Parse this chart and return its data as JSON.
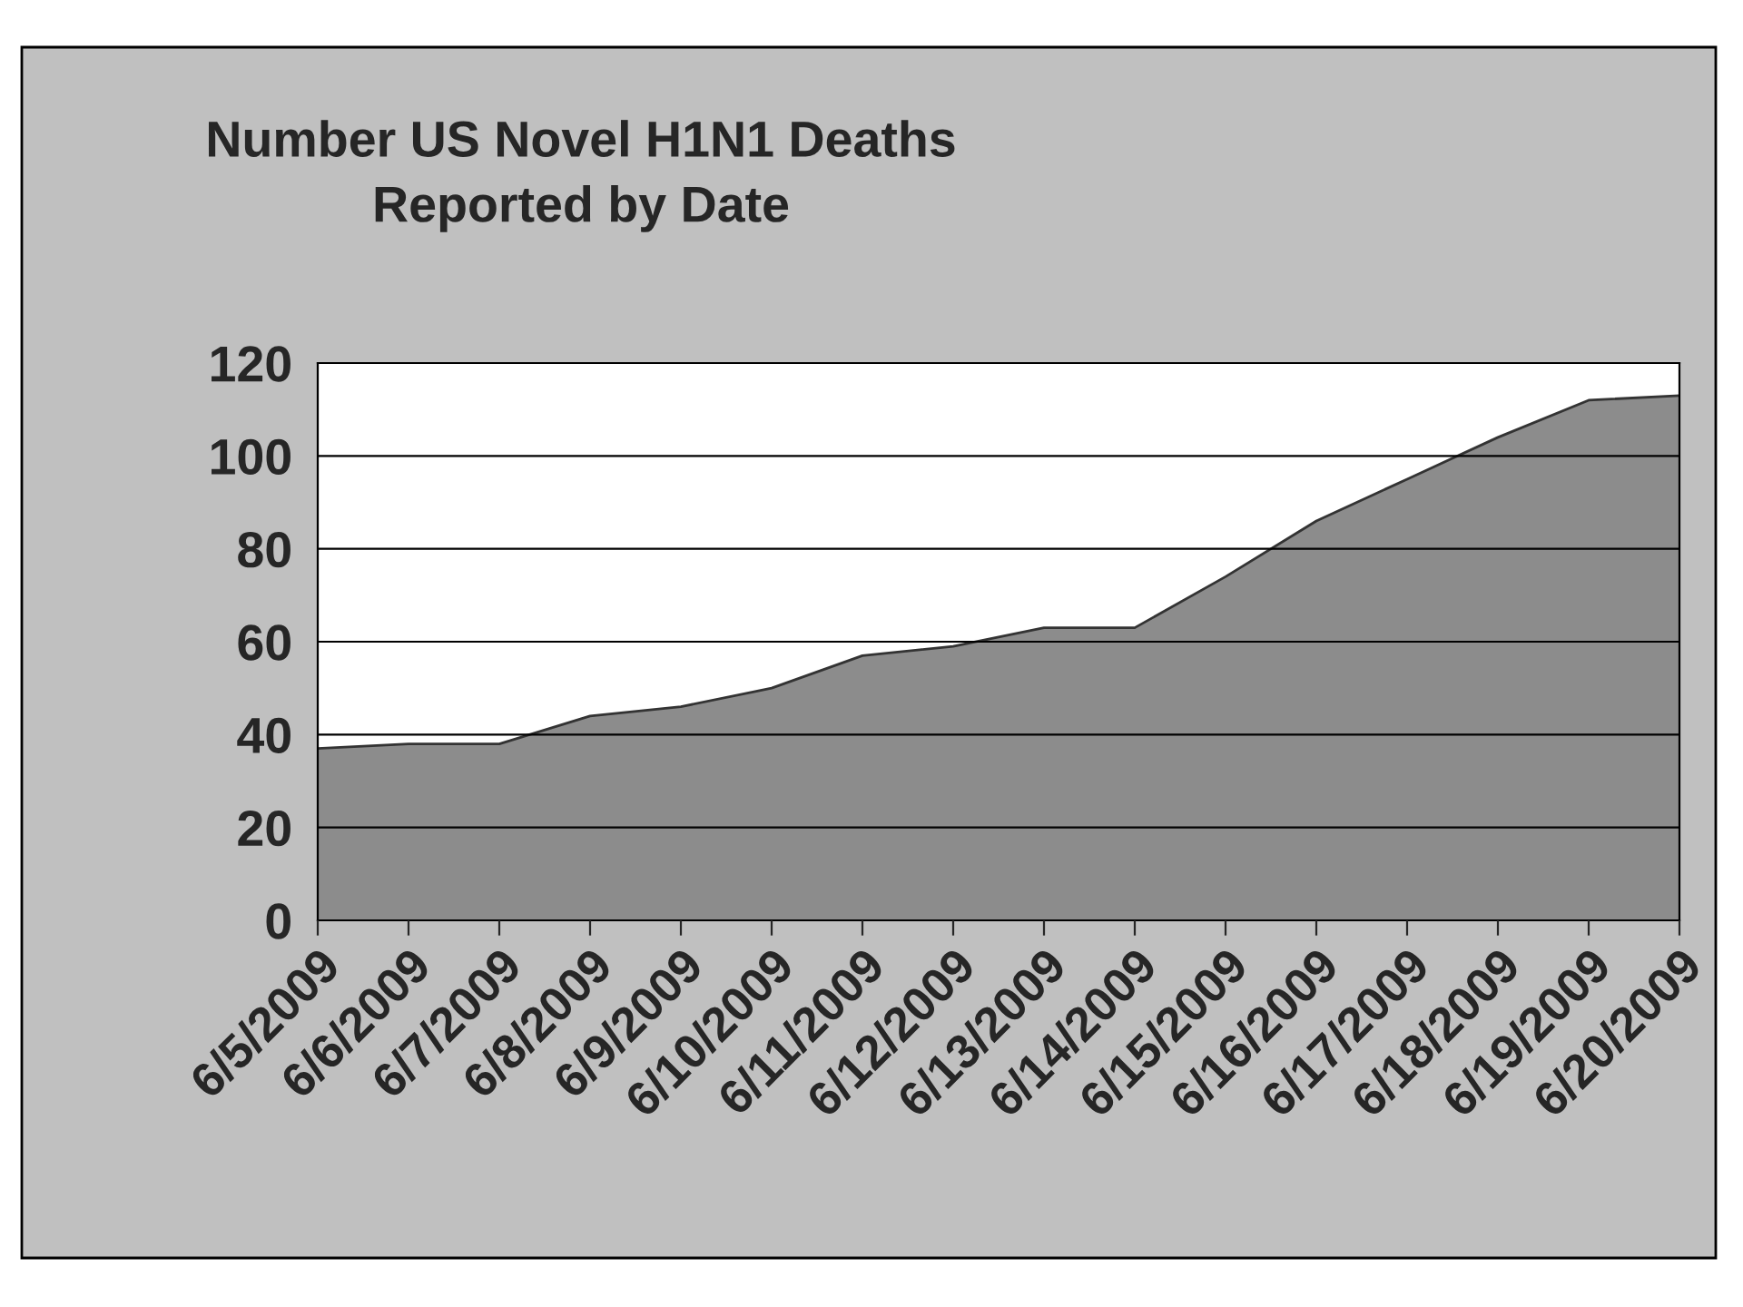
{
  "chart_data": {
    "type": "area",
    "title": "Number US Novel H1N1 Deaths\nReported by Date",
    "categories": [
      "6/5/2009",
      "6/6/2009",
      "6/7/2009",
      "6/8/2009",
      "6/9/2009",
      "6/10/2009",
      "6/11/2009",
      "6/12/2009",
      "6/13/2009",
      "6/14/2009",
      "6/15/2009",
      "6/16/2009",
      "6/17/2009",
      "6/18/2009",
      "6/19/2009",
      "6/20/2009"
    ],
    "values": [
      37,
      38,
      38,
      44,
      46,
      50,
      57,
      59,
      63,
      63,
      74,
      86,
      95,
      104,
      112,
      113
    ],
    "color": "#8c8c8c",
    "ylim": [
      0,
      120
    ],
    "yticks": [
      0,
      20,
      40,
      60,
      80,
      100,
      120
    ],
    "grid": "y",
    "legend": false
  }
}
